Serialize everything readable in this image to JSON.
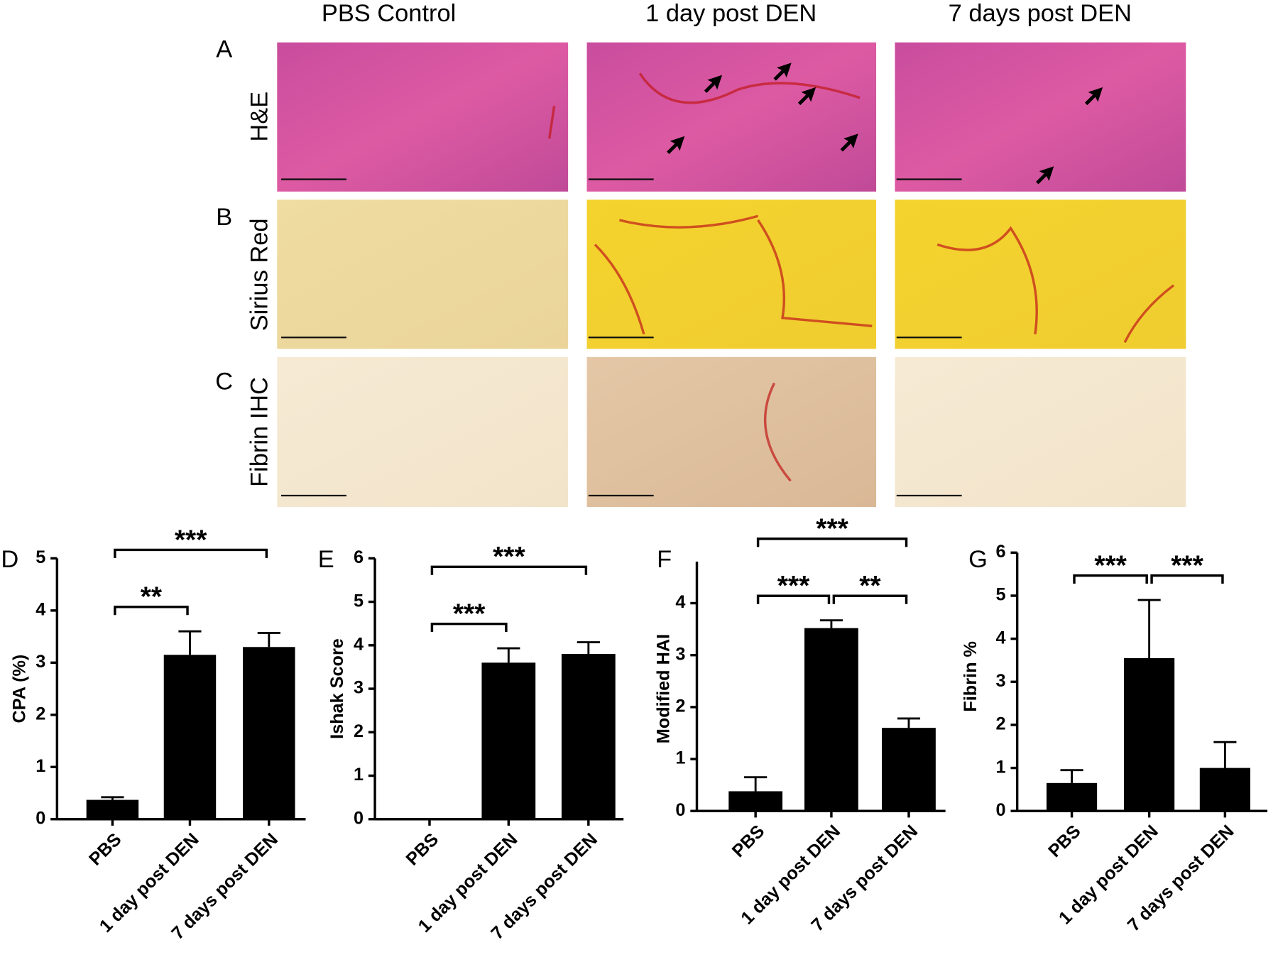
{
  "figure": {
    "column_headers": [
      "PBS Control",
      "1 day post DEN",
      "7 days post DEN"
    ],
    "row_labels": [
      "H&E",
      "Sirius Red",
      "Fibrin IHC"
    ],
    "panel_letters": [
      "A",
      "B",
      "C"
    ]
  },
  "chart_data": [
    {
      "type": "bar",
      "panel": "D",
      "ylabel": "CPA (%)",
      "categories": [
        "PBS",
        "1 day post DEN",
        "7 days post DEN"
      ],
      "values": [
        0.37,
        3.15,
        3.3
      ],
      "errors": [
        0.05,
        0.45,
        0.27
      ],
      "color": "#000000",
      "ylim": [
        0,
        5
      ],
      "yticks": [
        0,
        1,
        2,
        3,
        4,
        5
      ],
      "significance": [
        {
          "from": 0,
          "to": 1,
          "label": "**"
        },
        {
          "from": 0,
          "to": 2,
          "label": "***"
        }
      ]
    },
    {
      "type": "bar",
      "panel": "E",
      "ylabel": "Ishak Score",
      "categories": [
        "PBS",
        "1 day post DEN",
        "7 days post DEN"
      ],
      "values": [
        0,
        3.6,
        3.8
      ],
      "errors": [
        0,
        0.33,
        0.27
      ],
      "color": "#000000",
      "ylim": [
        0,
        6
      ],
      "yticks": [
        0,
        1,
        2,
        3,
        4,
        5,
        6
      ],
      "significance": [
        {
          "from": 0,
          "to": 1,
          "label": "***"
        },
        {
          "from": 0,
          "to": 2,
          "label": "***"
        }
      ]
    },
    {
      "type": "bar",
      "panel": "F",
      "ylabel": "Modified HAI",
      "categories": [
        "PBS",
        "1 day post DEN",
        "7 days post DEN"
      ],
      "values": [
        0.38,
        3.52,
        1.6
      ],
      "errors": [
        0.27,
        0.15,
        0.18
      ],
      "color": "#000000",
      "ylim": [
        0,
        4.8
      ],
      "yticks": [
        0,
        1,
        2,
        3,
        4
      ],
      "significance": [
        {
          "from": 0,
          "to": 1,
          "label": "***"
        },
        {
          "from": 1,
          "to": 2,
          "label": "**"
        },
        {
          "from": 0,
          "to": 2,
          "label": "***"
        }
      ]
    },
    {
      "type": "bar",
      "panel": "G",
      "ylabel": "Fibrin %",
      "categories": [
        "PBS",
        "1 day post DEN",
        "7 days post DEN"
      ],
      "values": [
        0.65,
        3.55,
        1.0
      ],
      "errors": [
        0.3,
        1.35,
        0.6
      ],
      "color": "#000000",
      "ylim": [
        0,
        6
      ],
      "yticks": [
        0,
        1,
        2,
        3,
        4,
        5,
        6
      ],
      "significance": [
        {
          "from": 0,
          "to": 1,
          "label": "***"
        },
        {
          "from": 1,
          "to": 2,
          "label": "***"
        }
      ]
    }
  ]
}
